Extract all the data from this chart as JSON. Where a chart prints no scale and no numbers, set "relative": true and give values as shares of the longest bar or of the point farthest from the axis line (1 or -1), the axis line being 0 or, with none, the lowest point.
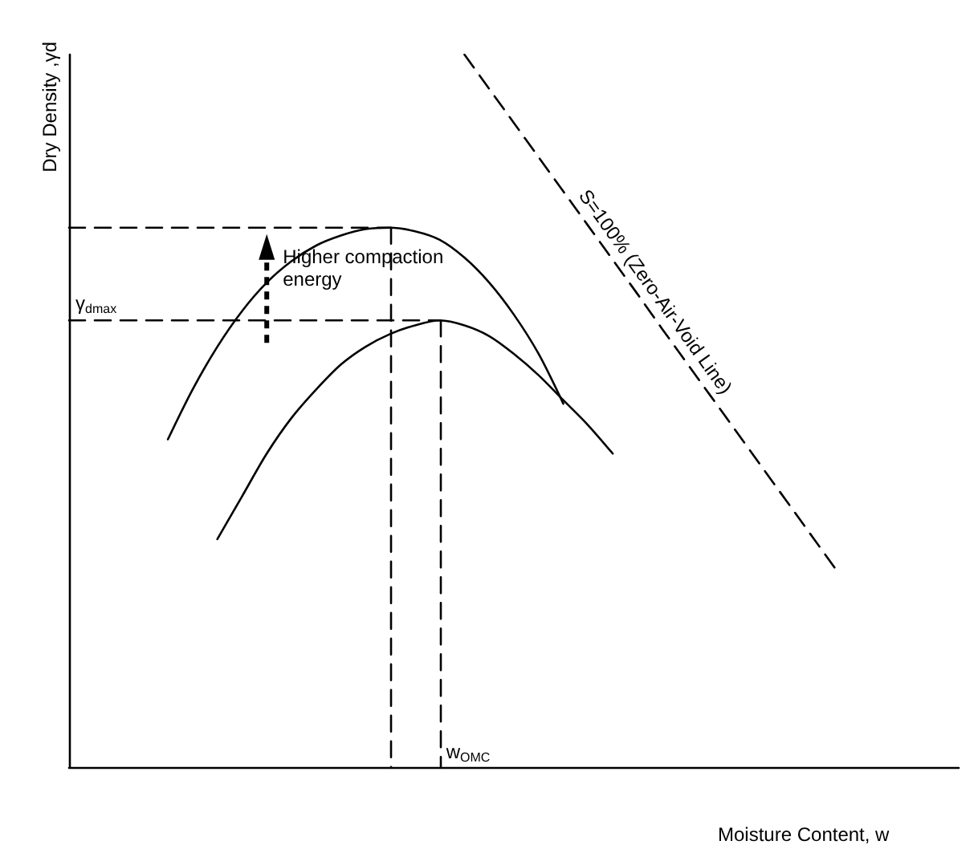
{
  "chart_data": {
    "type": "line",
    "relative": true,
    "xlabel": "Moisture Content, w",
    "ylabel": "Dry Density ,γd",
    "marker": "none",
    "grid": false,
    "categories": [
      null,
      null,
      null,
      null,
      null,
      null,
      null,
      null,
      null,
      null,
      null,
      null,
      null,
      null,
      null,
      null,
      null,
      null,
      null,
      null,
      null,
      null,
      null,
      null,
      null,
      null,
      null,
      null,
      null,
      null,
      null,
      null,
      null,
      null,
      null,
      null,
      null
    ],
    "series": [
      {
        "color": "#000000",
        "line_style": "solid",
        "values": [
          null,
          null,
          null,
          null,
          0.46,
          0.53,
          0.59,
          0.64,
          0.68,
          0.71,
          0.732,
          0.746,
          0.755,
          0.757,
          0.752,
          0.74,
          0.715,
          0.68,
          0.635,
          0.58,
          0.51,
          null,
          null,
          null,
          null,
          null,
          null,
          null,
          null,
          null,
          null,
          null,
          null,
          null,
          null,
          null,
          null
        ]
      },
      {
        "color": "#000000",
        "line_style": "solid",
        "values": [
          null,
          null,
          null,
          null,
          null,
          null,
          0.32,
          0.38,
          0.44,
          0.49,
          0.53,
          0.565,
          0.59,
          0.608,
          0.62,
          0.627,
          0.62,
          0.605,
          0.58,
          0.55,
          0.515,
          0.48,
          0.44,
          null,
          null,
          null,
          null,
          null,
          null,
          null,
          null,
          null,
          null,
          null,
          null,
          null,
          null
        ]
      },
      {
        "color": "#000000",
        "line_style": "dashed",
        "values": [
          null,
          null,
          null,
          null,
          null,
          null,
          null,
          null,
          null,
          null,
          null,
          null,
          null,
          null,
          null,
          null,
          1,
          0.952,
          0.904,
          0.856,
          0.808,
          0.76,
          0.712,
          0.664,
          0.615,
          0.567,
          0.519,
          0.471,
          0.423,
          0.375,
          0.327,
          0.279,
          null,
          null,
          null,
          null,
          null
        ]
      },
      {
        "color": "#000000",
        "line_style": "dashed",
        "values": [
          0.757,
          0.757,
          0.757,
          0.757,
          0.757,
          0.757,
          0.757,
          0.757,
          0.757,
          0.757,
          0.757,
          0.757,
          0.757,
          0.757,
          null,
          null,
          null,
          null,
          null,
          null,
          null,
          null,
          null,
          null,
          null,
          null,
          null,
          null,
          null,
          null,
          null,
          null,
          null,
          null,
          null,
          null,
          null
        ]
      },
      {
        "color": "#000000",
        "line_style": "dashed",
        "values": [
          0.627,
          0.627,
          0.627,
          0.627,
          0.627,
          0.627,
          0.627,
          0.627,
          0.627,
          0.627,
          0.627,
          0.627,
          0.627,
          0.627,
          0.627,
          0.627,
          null,
          null,
          null,
          null,
          null,
          null,
          null,
          null,
          null,
          null,
          null,
          null,
          null,
          null,
          null,
          null,
          null,
          null,
          null,
          null,
          null
        ]
      }
    ],
    "annotations": [
      "γ$_{dmax}$",
      "w$_{OMC}$",
      "Higher compaction energy",
      "S=100% (Zero-Air-Void Line)"
    ]
  }
}
